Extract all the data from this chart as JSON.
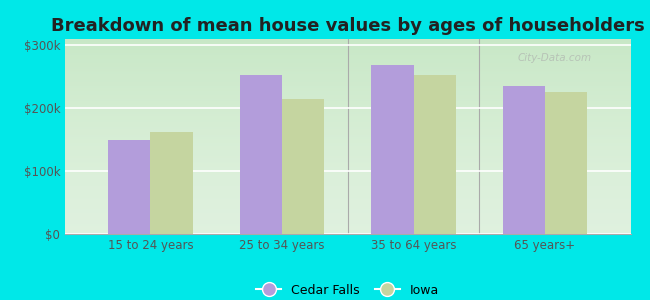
{
  "title": "Breakdown of mean house values by ages of householders",
  "categories": [
    "15 to 24 years",
    "25 to 34 years",
    "35 to 64 years",
    "65 years+"
  ],
  "cedar_falls": [
    150000,
    253000,
    268000,
    235000
  ],
  "iowa": [
    162000,
    215000,
    253000,
    225000
  ],
  "cedar_falls_color": "#b39ddb",
  "iowa_color": "#c5d5a0",
  "background_color": "#00e8e8",
  "ylim": [
    0,
    310000
  ],
  "yticks": [
    0,
    100000,
    200000,
    300000
  ],
  "ytick_labels": [
    "$0",
    "$100k",
    "$200k",
    "$300k"
  ],
  "title_fontsize": 13,
  "legend_labels": [
    "Cedar Falls",
    "Iowa"
  ],
  "bar_width": 0.32,
  "watermark": "City-Data.com"
}
